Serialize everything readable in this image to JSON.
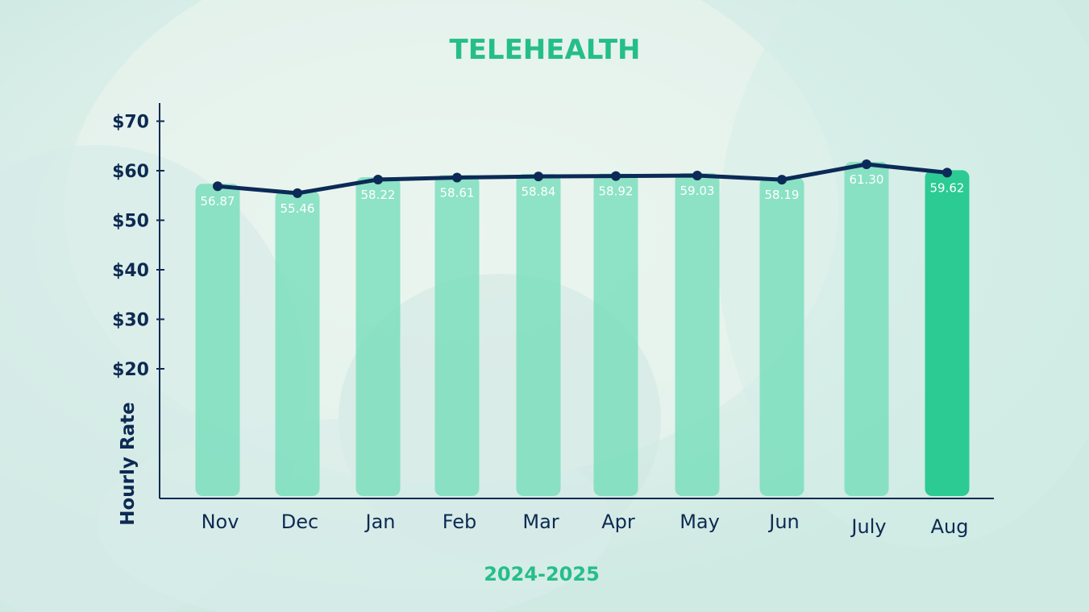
{
  "colors": {
    "title": "#25be8a",
    "axis": "#0d2a52",
    "line": "#0b2a57",
    "bar": "#6fdcb7",
    "bar_highlight": "#23c98e",
    "value_label": "#ffffff",
    "footer": "#25be8a"
  },
  "chart_data": {
    "type": "bar",
    "title": "TELEHEALTH",
    "xlabel": "2024-2025",
    "ylabel": "Hourly Rate",
    "categories": [
      "Nov",
      "Dec",
      "Jan",
      "Feb",
      "Mar",
      "Apr",
      "May",
      "Jun",
      "July",
      "Aug"
    ],
    "values": [
      56.87,
      55.46,
      58.22,
      58.61,
      58.84,
      58.92,
      59.03,
      58.19,
      61.3,
      59.62
    ],
    "value_labels": [
      "56.87",
      "55.46",
      "58.22",
      "58.61",
      "58.84",
      "58.92",
      "59.03",
      "58.19",
      "61.30",
      "59.62"
    ],
    "y_ticks": [
      20,
      30,
      40,
      50,
      60,
      70
    ],
    "y_tick_labels": [
      "$20",
      "$30",
      "$40",
      "$50",
      "$60",
      "$70"
    ],
    "line_overlay": true,
    "highlight_category": "Aug",
    "grid": false,
    "legend": "none"
  }
}
